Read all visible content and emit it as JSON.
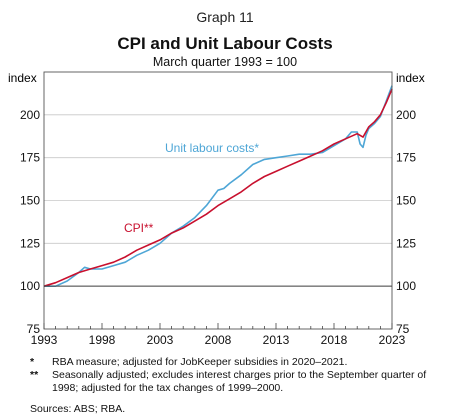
{
  "header": {
    "graph_number": "Graph 11",
    "title": "CPI and Unit Labour Costs",
    "subtitle": "March quarter 1993 = 100"
  },
  "chart_data": {
    "type": "line",
    "ylabel_left": "index",
    "ylabel_right": "index",
    "xlim": [
      1993,
      2023
    ],
    "ylim": [
      75,
      225
    ],
    "x_ticks": [
      1993,
      1998,
      2003,
      2008,
      2013,
      2018,
      2023
    ],
    "y_ticks": [
      75,
      100,
      125,
      150,
      175,
      200
    ],
    "grid": true,
    "colors": {
      "cpi": "#c8102e",
      "ulc": "#4ea6d6"
    },
    "series": [
      {
        "name": "Unit labour costs*",
        "key": "ulc",
        "x": [
          1993,
          1994,
          1995,
          1996,
          1996.5,
          1997,
          1998,
          1999,
          2000,
          2001,
          2002,
          2003,
          2004,
          2005,
          2006,
          2007,
          2008,
          2008.5,
          2009,
          2010,
          2011,
          2012,
          2013,
          2014,
          2015,
          2016,
          2017,
          2018,
          2019,
          2019.5,
          2020,
          2020.25,
          2020.5,
          2020.75,
          2021,
          2021.5,
          2022,
          2022.5,
          2023
        ],
        "y": [
          100,
          100,
          103,
          108,
          111,
          110,
          110,
          112,
          114,
          118,
          121,
          125,
          131,
          135,
          140,
          147,
          156,
          157,
          160,
          165,
          171,
          174,
          175,
          176,
          177,
          177,
          178,
          182,
          186,
          190,
          190,
          183,
          181,
          188,
          192,
          195,
          199,
          208,
          217
        ]
      },
      {
        "name": "CPI**",
        "key": "cpi",
        "x": [
          1993,
          1994,
          1995,
          1996,
          1997,
          1998,
          1999,
          2000,
          2001,
          2002,
          2003,
          2004,
          2005,
          2006,
          2007,
          2008,
          2009,
          2010,
          2011,
          2012,
          2013,
          2014,
          2015,
          2016,
          2017,
          2018,
          2019,
          2020,
          2020.5,
          2021,
          2021.5,
          2022,
          2022.5,
          2023
        ],
        "y": [
          100,
          102,
          105,
          108,
          110,
          112,
          114,
          117,
          121,
          124,
          127,
          131,
          134,
          138,
          142,
          147,
          151,
          155,
          160,
          164,
          167,
          170,
          173,
          176,
          179,
          183,
          186,
          189,
          187,
          193,
          196,
          200,
          207,
          215
        ]
      }
    ]
  },
  "series_labels": {
    "ulc": "Unit labour costs*",
    "cpi": "CPI**"
  },
  "notes": [
    {
      "mark": "*",
      "text": "RBA measure; adjusted for JobKeeper subsidies in 2020–2021."
    },
    {
      "mark": "**",
      "text": "Seasonally adjusted; excludes interest charges prior to the September quarter of 1998; adjusted for the tax changes of 1999–2000."
    }
  ],
  "sources": "Sources: ABS; RBA."
}
